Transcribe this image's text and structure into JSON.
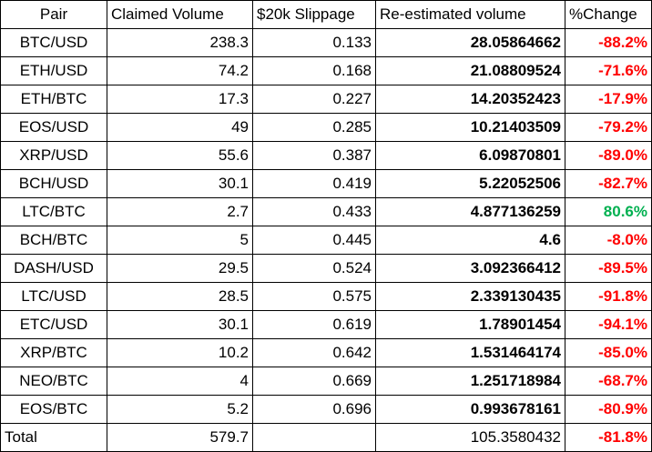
{
  "table": {
    "headers": [
      "Pair",
      "Claimed Volume",
      "$20k Slippage",
      "Re-estimated volume",
      "%Change"
    ],
    "rows": [
      {
        "pair": "BTC/USD",
        "claimed": "238.3",
        "slippage": "0.133",
        "reestimated": "28.05864662",
        "change": "-88.2%",
        "change_sign": "neg"
      },
      {
        "pair": "ETH/USD",
        "claimed": "74.2",
        "slippage": "0.168",
        "reestimated": "21.08809524",
        "change": "-71.6%",
        "change_sign": "neg"
      },
      {
        "pair": "ETH/BTC",
        "claimed": "17.3",
        "slippage": "0.227",
        "reestimated": "14.20352423",
        "change": "-17.9%",
        "change_sign": "neg"
      },
      {
        "pair": "EOS/USD",
        "claimed": "49",
        "slippage": "0.285",
        "reestimated": "10.21403509",
        "change": "-79.2%",
        "change_sign": "neg"
      },
      {
        "pair": "XRP/USD",
        "claimed": "55.6",
        "slippage": "0.387",
        "reestimated": "6.09870801",
        "change": "-89.0%",
        "change_sign": "neg"
      },
      {
        "pair": "BCH/USD",
        "claimed": "30.1",
        "slippage": "0.419",
        "reestimated": "5.22052506",
        "change": "-82.7%",
        "change_sign": "neg"
      },
      {
        "pair": "LTC/BTC",
        "claimed": "2.7",
        "slippage": "0.433",
        "reestimated": "4.877136259",
        "change": "80.6%",
        "change_sign": "pos"
      },
      {
        "pair": "BCH/BTC",
        "claimed": "5",
        "slippage": "0.445",
        "reestimated": "4.6",
        "change": "-8.0%",
        "change_sign": "neg"
      },
      {
        "pair": "DASH/USD",
        "claimed": "29.5",
        "slippage": "0.524",
        "reestimated": "3.092366412",
        "change": "-89.5%",
        "change_sign": "neg"
      },
      {
        "pair": "LTC/USD",
        "claimed": "28.5",
        "slippage": "0.575",
        "reestimated": "2.339130435",
        "change": "-91.8%",
        "change_sign": "neg"
      },
      {
        "pair": "ETC/USD",
        "claimed": "30.1",
        "slippage": "0.619",
        "reestimated": "1.78901454",
        "change": "-94.1%",
        "change_sign": "neg"
      },
      {
        "pair": "XRP/BTC",
        "claimed": "10.2",
        "slippage": "0.642",
        "reestimated": "1.531464174",
        "change": "-85.0%",
        "change_sign": "neg"
      },
      {
        "pair": "NEO/BTC",
        "claimed": "4",
        "slippage": "0.669",
        "reestimated": "1.251718984",
        "change": "-68.7%",
        "change_sign": "neg"
      },
      {
        "pair": "EOS/BTC",
        "claimed": "5.2",
        "slippage": "0.696",
        "reestimated": "0.993678161",
        "change": "-80.9%",
        "change_sign": "neg"
      }
    ],
    "total": {
      "label": "Total",
      "claimed": "579.7",
      "slippage": "",
      "reestimated": "105.3580432",
      "change": "-81.8%",
      "change_sign": "neg"
    }
  },
  "colors": {
    "negative": "#ff0000",
    "positive": "#00b050",
    "border": "#000000"
  }
}
